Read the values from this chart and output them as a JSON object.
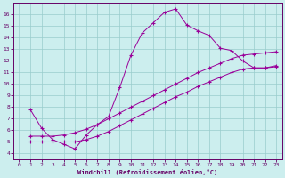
{
  "xlabel": "Windchill (Refroidissement éolien,°C)",
  "bg_color": "#cceeee",
  "line_color": "#990099",
  "grid_color": "#99cccc",
  "spine_color": "#660066",
  "xlim": [
    -0.5,
    23.5
  ],
  "ylim": [
    3.5,
    17.0
  ],
  "xticks": [
    0,
    1,
    2,
    3,
    4,
    5,
    6,
    7,
    8,
    9,
    10,
    11,
    12,
    13,
    14,
    15,
    16,
    17,
    18,
    19,
    20,
    21,
    22,
    23
  ],
  "yticks": [
    4,
    5,
    6,
    7,
    8,
    9,
    10,
    11,
    12,
    13,
    14,
    15,
    16
  ],
  "s1_x": [
    1,
    2,
    3,
    4,
    5,
    6,
    7,
    8,
    9,
    10,
    11,
    12,
    13,
    14,
    15,
    16,
    17,
    18,
    19,
    20,
    21,
    22,
    23
  ],
  "s1_y": [
    7.8,
    6.2,
    5.2,
    4.8,
    4.4,
    5.6,
    6.5,
    7.2,
    9.7,
    12.5,
    14.4,
    15.3,
    16.2,
    16.5,
    15.1,
    14.6,
    14.2,
    13.1,
    12.9,
    12.0,
    11.4,
    11.4,
    11.6
  ],
  "s2_x": [
    1,
    2,
    3,
    4,
    5,
    6,
    7,
    8,
    9,
    10,
    11,
    12,
    13,
    14,
    15,
    16,
    17,
    18,
    19,
    20,
    21,
    22,
    23
  ],
  "s2_y": [
    5.5,
    5.5,
    5.5,
    5.6,
    5.8,
    6.1,
    6.5,
    7.0,
    7.5,
    8.0,
    8.5,
    9.0,
    9.5,
    10.0,
    10.5,
    11.0,
    11.4,
    11.8,
    12.2,
    12.5,
    12.6,
    12.7,
    12.8
  ],
  "s3_x": [
    1,
    2,
    3,
    4,
    5,
    6,
    7,
    8,
    9,
    10,
    11,
    12,
    13,
    14,
    15,
    16,
    17,
    18,
    19,
    20,
    21,
    22,
    23
  ],
  "s3_y": [
    5.0,
    5.0,
    5.0,
    5.0,
    5.0,
    5.2,
    5.5,
    5.9,
    6.4,
    6.9,
    7.4,
    7.9,
    8.4,
    8.9,
    9.3,
    9.8,
    10.2,
    10.6,
    11.0,
    11.3,
    11.4,
    11.4,
    11.5
  ]
}
